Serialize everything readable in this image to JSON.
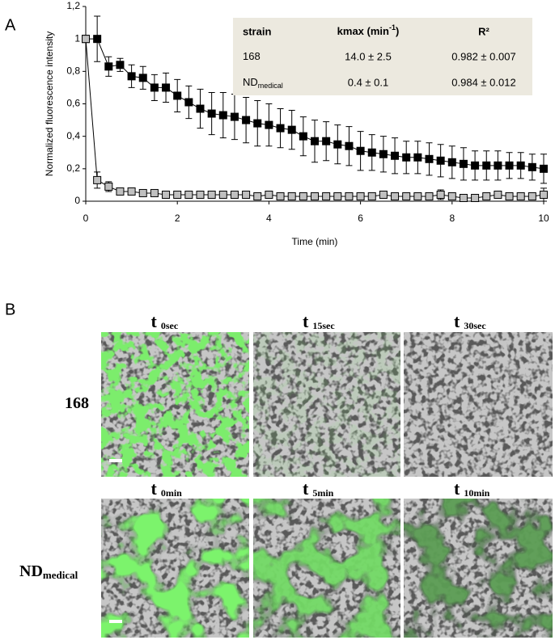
{
  "panel_a_label": "A",
  "chart_data": {
    "type": "line",
    "y_label": "Normalized fluorescence intensity",
    "x_label": "Time (min)",
    "xlim": [
      0,
      10
    ],
    "xticks": [
      0,
      2,
      4,
      6,
      8,
      10
    ],
    "ylim": [
      0,
      1.2
    ],
    "yticks": [
      0,
      {
        "value": 0.2,
        "label": "0,2"
      },
      {
        "value": 0.4,
        "label": "0,4"
      },
      {
        "value": 0.6,
        "label": "0,6"
      },
      {
        "value": 0.8,
        "label": "0,8"
      },
      1,
      {
        "value": 1.2,
        "label": "1,2"
      }
    ],
    "x": [
      0,
      0.25,
      0.5,
      0.75,
      1,
      1.25,
      1.5,
      1.75,
      2,
      2.25,
      2.5,
      2.75,
      3,
      3.25,
      3.5,
      3.75,
      4,
      4.25,
      4.5,
      4.75,
      5,
      5.25,
      5.5,
      5.75,
      6,
      6.25,
      6.5,
      6.75,
      7,
      7.25,
      7.5,
      7.75,
      8,
      8.25,
      8.5,
      8.75,
      9,
      9.25,
      9.5,
      9.75,
      10
    ],
    "series": [
      {
        "color": "#000000",
        "values": [
          1.0,
          1.0,
          0.83,
          0.84,
          0.77,
          0.76,
          0.7,
          0.7,
          0.65,
          0.61,
          0.57,
          0.54,
          0.53,
          0.52,
          0.5,
          0.48,
          0.47,
          0.45,
          0.44,
          0.4,
          0.37,
          0.37,
          0.35,
          0.34,
          0.31,
          0.3,
          0.29,
          0.28,
          0.27,
          0.27,
          0.26,
          0.25,
          0.24,
          0.23,
          0.22,
          0.22,
          0.22,
          0.22,
          0.22,
          0.21,
          0.2
        ],
        "errors": [
          0,
          0.14,
          0.06,
          0.04,
          0.07,
          0.07,
          0.08,
          0.09,
          0.1,
          0.1,
          0.12,
          0.13,
          0.14,
          0.14,
          0.14,
          0.14,
          0.13,
          0.12,
          0.12,
          0.12,
          0.13,
          0.12,
          0.12,
          0.12,
          0.12,
          0.11,
          0.11,
          0.11,
          0.1,
          0.1,
          0.1,
          0.1,
          0.1,
          0.1,
          0.09,
          0.09,
          0.09,
          0.08,
          0.08,
          0.08,
          0.09
        ]
      },
      {
        "color": "#c0c0c0",
        "values": [
          1.0,
          0.13,
          0.09,
          0.06,
          0.06,
          0.05,
          0.05,
          0.04,
          0.04,
          0.04,
          0.04,
          0.04,
          0.04,
          0.04,
          0.04,
          0.03,
          0.04,
          0.03,
          0.03,
          0.03,
          0.03,
          0.03,
          0.03,
          0.03,
          0.03,
          0.03,
          0.04,
          0.03,
          0.03,
          0.03,
          0.03,
          0.04,
          0.03,
          0.02,
          0.02,
          0.03,
          0.04,
          0.03,
          0.03,
          0.03,
          0.04
        ],
        "errors": [
          0,
          0.05,
          0.03,
          0.02,
          0.01,
          0.01,
          0.01,
          0.01,
          0.01,
          0.01,
          0.01,
          0.01,
          0.01,
          0.01,
          0.01,
          0.01,
          0.02,
          0.01,
          0.01,
          0.01,
          0.01,
          0.01,
          0.01,
          0.01,
          0.01,
          0.01,
          0.02,
          0.01,
          0.01,
          0.01,
          0.01,
          0.03,
          0.01,
          0.01,
          0.01,
          0.01,
          0.02,
          0.02,
          0.01,
          0.01,
          0.04
        ]
      }
    ]
  },
  "table": {
    "header": [
      "strain",
      {
        "text": "kmax (min",
        "sup": "-1",
        "tail": ")"
      },
      "R²"
    ],
    "rows": [
      [
        {
          "text": "168"
        },
        "14.0 ± 2.5",
        "0.982 ± 0.007"
      ],
      [
        {
          "text": "ND",
          "sub": "medical"
        },
        "0.4 ± 0.1",
        "0.984 ± 0.012"
      ]
    ]
  },
  "panel_b": {
    "label": "B",
    "t": "t",
    "rows": [
      {
        "label": {
          "text": "168"
        },
        "times": [
          "0sec",
          "15sec",
          "30sec"
        ]
      },
      {
        "label": {
          "text": "ND",
          "sub": "medical"
        },
        "times": [
          "0min",
          "5min",
          "10min"
        ]
      }
    ]
  }
}
